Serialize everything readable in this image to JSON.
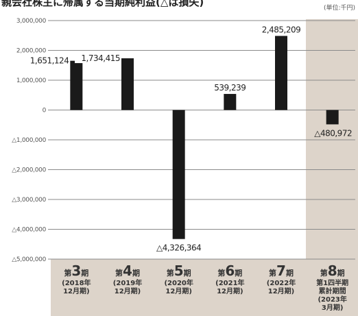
{
  "chart_data": {
    "type": "bar",
    "title": "親会社株主に帰属する当期純利益(△は損失)",
    "unit_label": "(単位:千円)",
    "categories": [
      {
        "prefix": "第",
        "num": "3",
        "suffix": "期",
        "sub": [
          "(2018年",
          "12月期)"
        ]
      },
      {
        "prefix": "第",
        "num": "4",
        "suffix": "期",
        "sub": [
          "(2019年",
          "12月期)"
        ]
      },
      {
        "prefix": "第",
        "num": "5",
        "suffix": "期",
        "sub": [
          "(2020年",
          "12月期)"
        ]
      },
      {
        "prefix": "第",
        "num": "6",
        "suffix": "期",
        "sub": [
          "(2021年",
          "12月期)"
        ]
      },
      {
        "prefix": "第",
        "num": "7",
        "suffix": "期",
        "sub": [
          "(2022年",
          "12月期)"
        ]
      },
      {
        "prefix": "第",
        "num": "8",
        "suffix": "期",
        "sub": [
          "第1四半期",
          "累計期間",
          "(2023年",
          "3月期)"
        ]
      }
    ],
    "values": [
      1651124,
      1734415,
      -4326364,
      539239,
      2485209,
      -480972
    ],
    "value_labels": [
      "1,651,124",
      "1,734,415",
      "△4,326,364",
      "539,239",
      "2,485,209",
      "△480,972"
    ],
    "ylim": [
      -5000000,
      3000000
    ],
    "yticks": [
      3000000,
      2000000,
      1000000,
      0,
      -1000000,
      -2000000,
      -3000000,
      -4000000,
      -5000000
    ],
    "ytick_labels": [
      "3,000,000",
      "2,000,000",
      "1,000,000",
      "0",
      "△1,000,000",
      "△2,000,000",
      "△3,000,000",
      "△4,000,000",
      "△5,000,000"
    ],
    "grid": true,
    "highlighted_category_index": 5,
    "colors": {
      "bar": "#1a1a1a",
      "grid": "#8a8a8a",
      "axis_band": "#ddd4ca",
      "highlight_band": "#ddd4ca"
    }
  }
}
